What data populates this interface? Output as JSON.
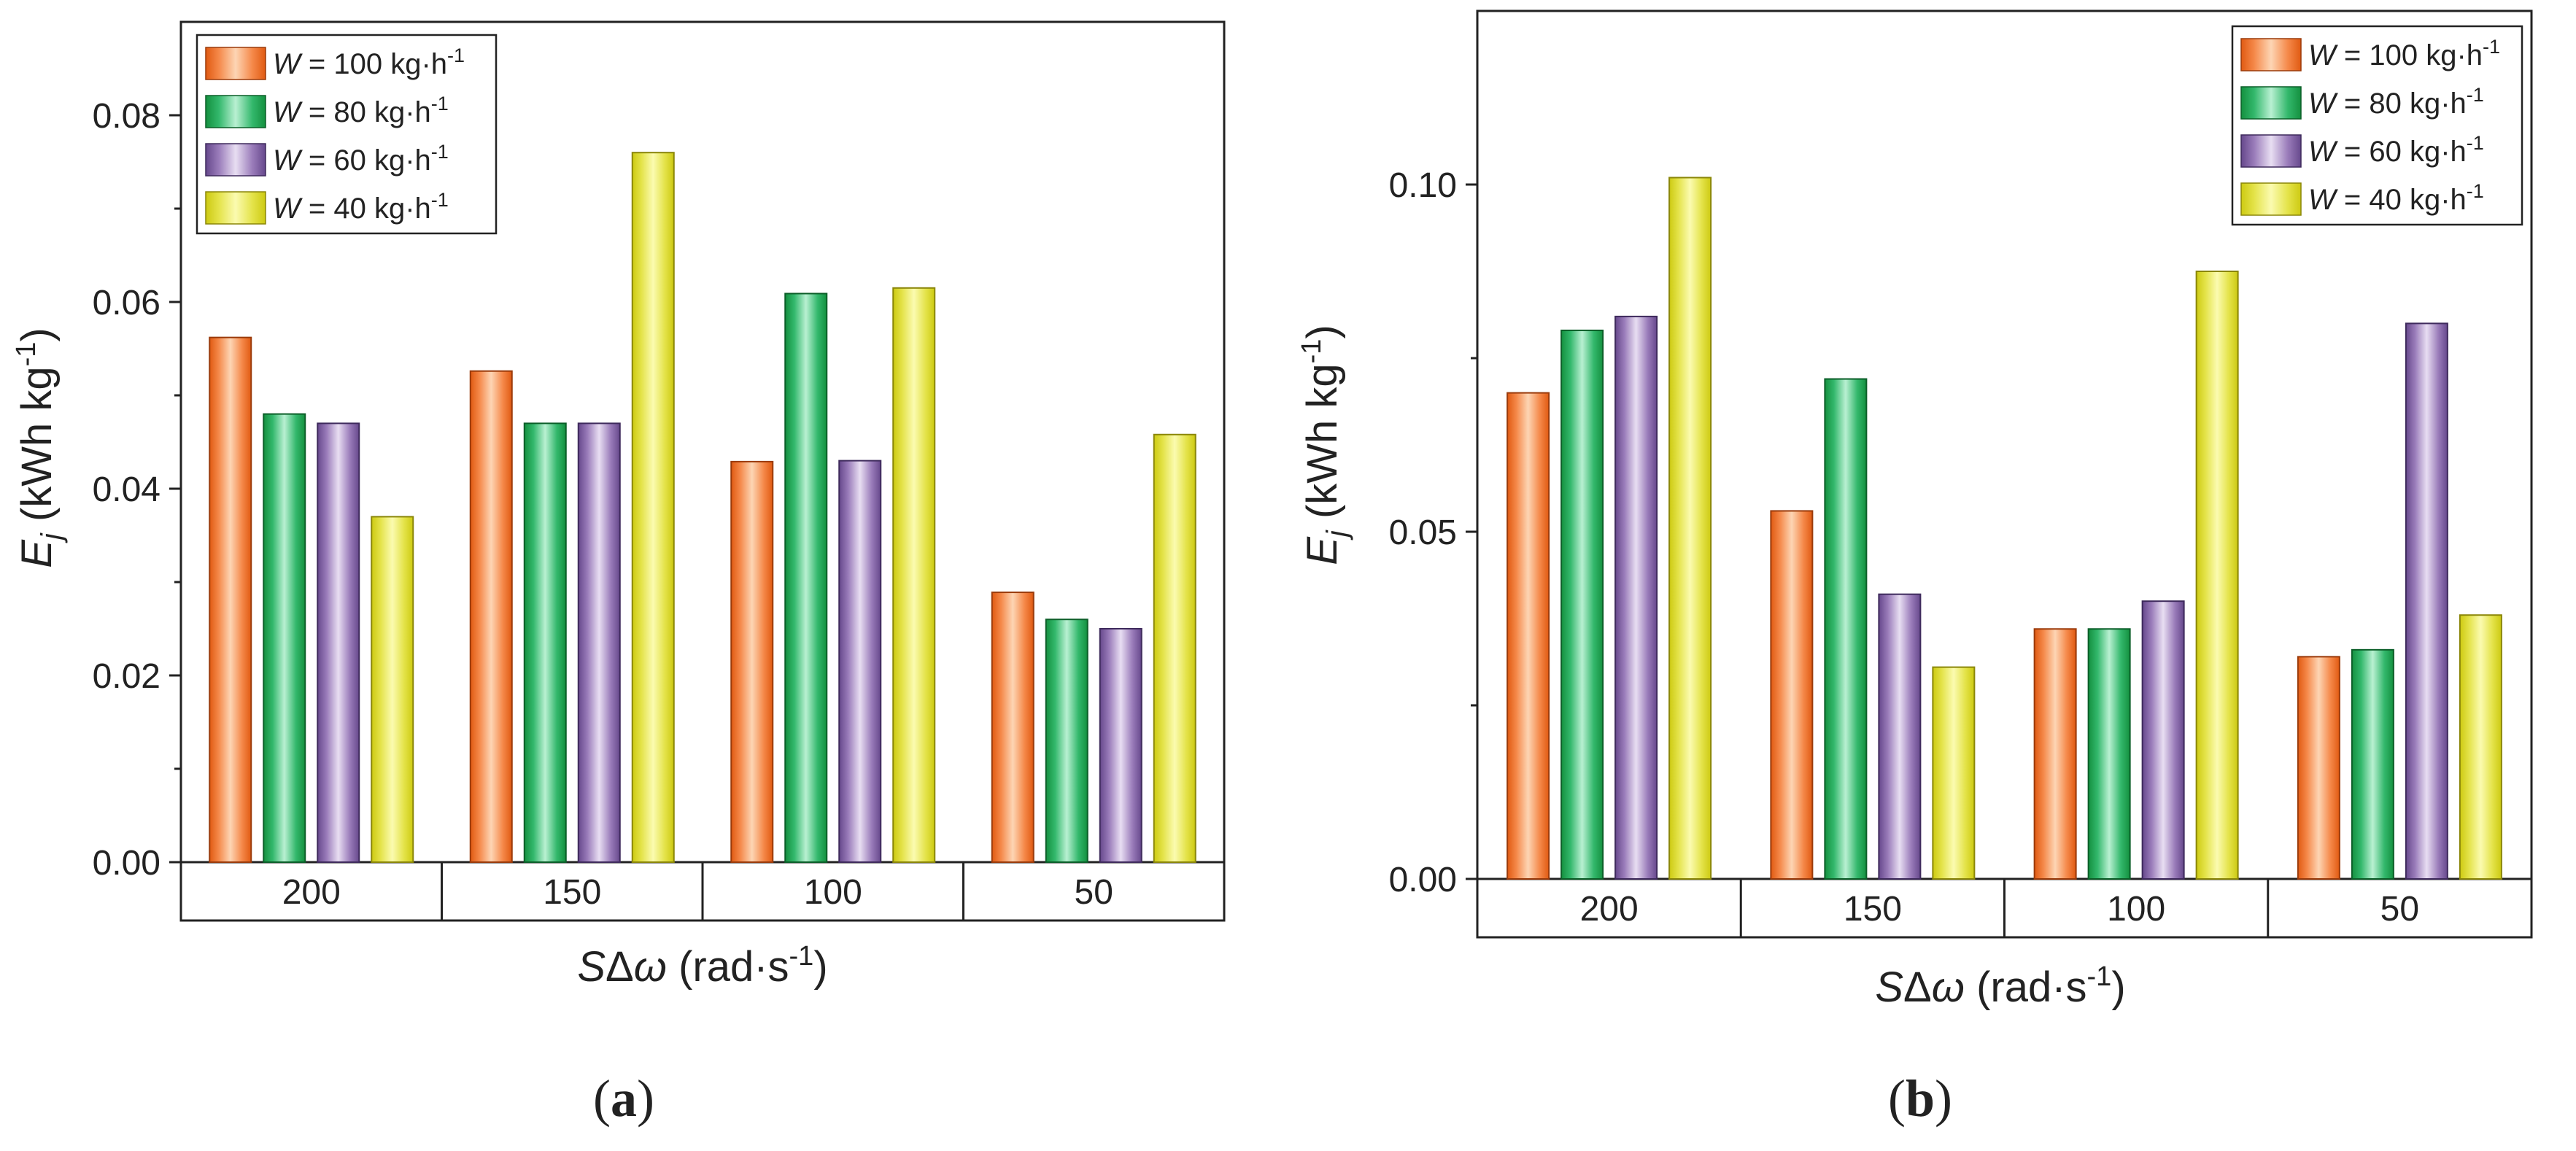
{
  "colors": {
    "W100": {
      "light": "#FDD5B4",
      "mid": "#F5894A",
      "dark": "#E05A12",
      "stroke": "#9A3A0A"
    },
    "W80": {
      "light": "#B9F0D2",
      "mid": "#33B86C",
      "dark": "#14903F",
      "stroke": "#0B5E28"
    },
    "W60": {
      "light": "#E8DEF2",
      "mid": "#9A7CBA",
      "dark": "#66488C",
      "stroke": "#3E2A5C"
    },
    "W40": {
      "light": "#FBFBB0",
      "mid": "#E4E34A",
      "dark": "#CDCA12",
      "stroke": "#8A8608"
    }
  },
  "chart_data": [
    {
      "panel": "(a)",
      "type": "bar",
      "categories": [
        "200",
        "150",
        "100",
        "50"
      ],
      "series": [
        {
          "key": "W100",
          "name_italic": "W",
          "name_rest": " = 100 kg·h",
          "name_sup": "-1",
          "values": [
            0.0562,
            0.0526,
            0.0429,
            0.0289
          ]
        },
        {
          "key": "W80",
          "name_italic": "W",
          "name_rest": " = 80 kg·h",
          "name_sup": "-1",
          "values": [
            0.048,
            0.047,
            0.0609,
            0.026
          ]
        },
        {
          "key": "W60",
          "name_italic": "W",
          "name_rest": " = 60 kg·h",
          "name_sup": "-1",
          "values": [
            0.047,
            0.047,
            0.043,
            0.025
          ]
        },
        {
          "key": "W40",
          "name_italic": "W",
          "name_rest": " = 40 kg·h",
          "name_sup": "-1",
          "values": [
            0.037,
            0.076,
            0.0615,
            0.0458
          ]
        }
      ],
      "ylim": [
        0,
        0.09
      ],
      "yticks": [
        "0.00",
        "0.02",
        "0.04",
        "0.06",
        "0.08"
      ],
      "ytick_values": [
        0,
        0.02,
        0.04,
        0.06,
        0.08
      ],
      "ylabel_main": "E",
      "ylabel_sub": "j",
      "ylabel_unit": " (kWh kg",
      "ylabel_sup": "-1",
      "ylabel_close": ")",
      "xlabel_italic1": "S",
      "xlabel_delta": "Δ",
      "xlabel_italic2": "ω",
      "xlabel_unit": " (rad·s",
      "xlabel_sup": "-1",
      "xlabel_close": ")",
      "legend_position": "top-left",
      "caption": "(a)"
    },
    {
      "panel": "(b)",
      "type": "bar",
      "categories": [
        "200",
        "150",
        "100",
        "50"
      ],
      "series": [
        {
          "key": "W100",
          "name_italic": "W",
          "name_rest": " = 100 kg·h",
          "name_sup": "-1",
          "values": [
            0.07,
            0.053,
            0.036,
            0.032
          ]
        },
        {
          "key": "W80",
          "name_italic": "W",
          "name_rest": " = 80 kg·h",
          "name_sup": "-1",
          "values": [
            0.079,
            0.072,
            0.036,
            0.033
          ]
        },
        {
          "key": "W60",
          "name_italic": "W",
          "name_rest": " = 60 kg·h",
          "name_sup": "-1",
          "values": [
            0.081,
            0.041,
            0.04,
            0.08
          ]
        },
        {
          "key": "W40",
          "name_italic": "W",
          "name_rest": " = 40 kg·h",
          "name_sup": "-1",
          "values": [
            0.101,
            0.0305,
            0.0875,
            0.038
          ]
        }
      ],
      "ylim": [
        0,
        0.125
      ],
      "yticks": [
        "0.00",
        "0.05",
        "0.10"
      ],
      "ytick_values": [
        0,
        0.05,
        0.1
      ],
      "ylabel_main": "E",
      "ylabel_sub": "j",
      "ylabel_unit": " (kWh kg",
      "ylabel_sup": "-1",
      "ylabel_close": ")",
      "xlabel_italic1": "S",
      "xlabel_delta": "Δ",
      "xlabel_italic2": "ω",
      "xlabel_unit": " (rad·s",
      "xlabel_sup": "-1",
      "xlabel_close": ")",
      "legend_position": "top-right",
      "caption": "(b)"
    }
  ]
}
